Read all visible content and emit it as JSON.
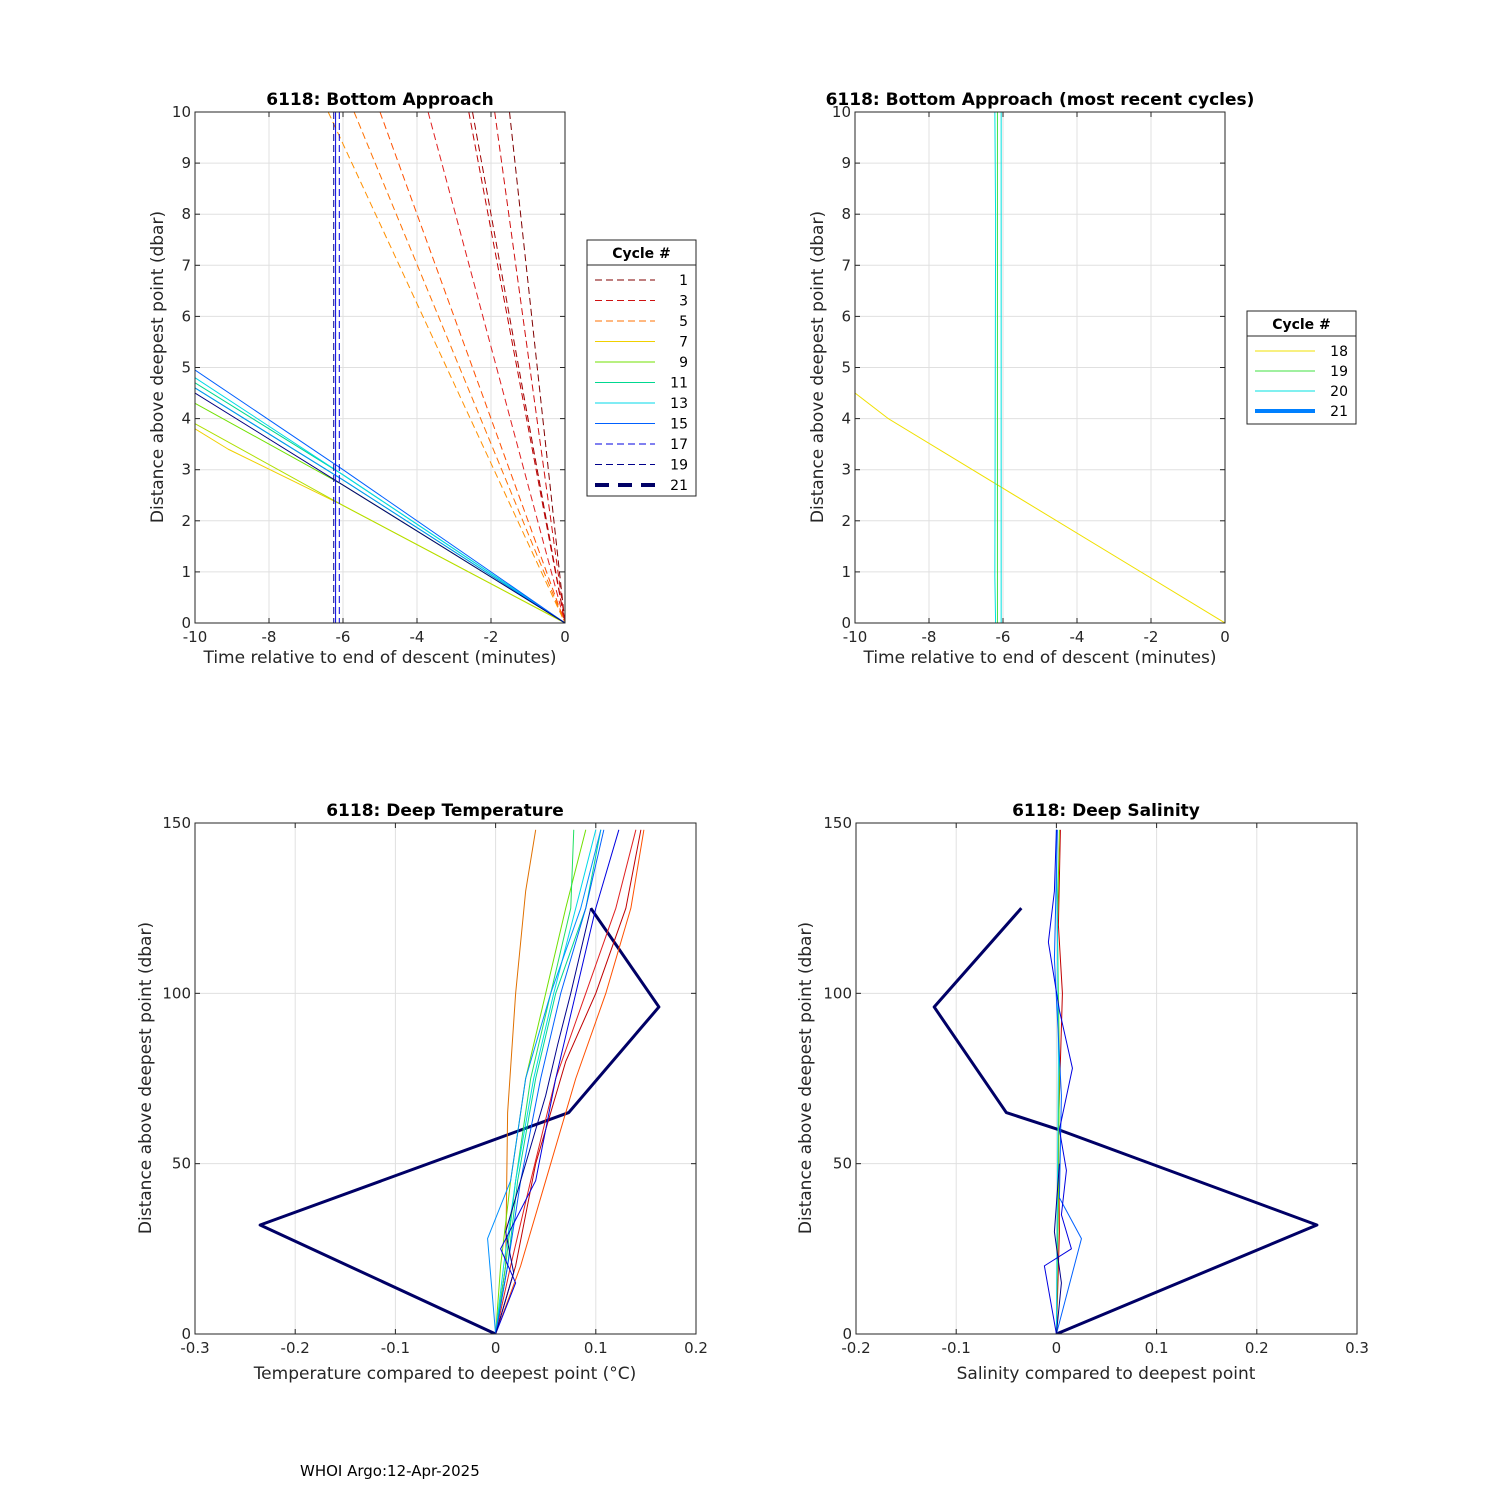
{
  "footer": "WHOI Argo:12-Apr-2025",
  "chart_data": [
    {
      "id": "p1",
      "type": "line",
      "title": "6118: Bottom Approach",
      "xlabel": "Time relative to end of descent (minutes)",
      "ylabel": "Distance above deepest point (dbar)",
      "xlim": [
        -10,
        0
      ],
      "ylim": [
        0,
        10
      ],
      "xticks": [
        -10,
        -8,
        -6,
        -4,
        -2,
        0
      ],
      "yticks": [
        0,
        1,
        2,
        3,
        4,
        5,
        6,
        7,
        8,
        9,
        10
      ],
      "grid": true,
      "legend": {
        "title": "Cycle #",
        "position": "right",
        "entries": [
          {
            "label": "1",
            "color": "#800000",
            "style": "dashed"
          },
          {
            "label": "3",
            "color": "#d01010",
            "style": "dashed"
          },
          {
            "label": "5",
            "color": "#ff7000",
            "style": "dashed"
          },
          {
            "label": "7",
            "color": "#f0d000",
            "style": "solid"
          },
          {
            "label": "9",
            "color": "#70e000",
            "style": "solid"
          },
          {
            "label": "11",
            "color": "#00d890",
            "style": "solid"
          },
          {
            "label": "13",
            "color": "#00d8e8",
            "style": "solid"
          },
          {
            "label": "15",
            "color": "#0060ff",
            "style": "solid"
          },
          {
            "label": "17",
            "color": "#0000e0",
            "style": "dashed"
          },
          {
            "label": "19",
            "color": "#00008b",
            "style": "dashed"
          },
          {
            "label": "21",
            "color": "#000066",
            "style": "dashed-thick"
          }
        ]
      },
      "series": [
        {
          "color": "#800000",
          "style": "dashed",
          "width": 1,
          "x": [
            -1.5,
            0
          ],
          "y": [
            10,
            0
          ]
        },
        {
          "color": "#a00000",
          "style": "dashed",
          "width": 1,
          "x": [
            -2.5,
            0
          ],
          "y": [
            10,
            0
          ]
        },
        {
          "color": "#c00000",
          "style": "dashed",
          "width": 1,
          "x": [
            -2.6,
            0
          ],
          "y": [
            10,
            0
          ]
        },
        {
          "color": "#d01010",
          "style": "dashed",
          "width": 1,
          "x": [
            -1.9,
            0
          ],
          "y": [
            10,
            0
          ]
        },
        {
          "color": "#e02020",
          "style": "dashed",
          "width": 1,
          "x": [
            -3.7,
            0
          ],
          "y": [
            10,
            0
          ]
        },
        {
          "color": "#ff5000",
          "style": "dashed",
          "width": 1,
          "x": [
            -5.0,
            0
          ],
          "y": [
            10,
            0
          ]
        },
        {
          "color": "#ff7000",
          "style": "dashed",
          "width": 1,
          "x": [
            -5.7,
            0
          ],
          "y": [
            10,
            0
          ]
        },
        {
          "color": "#ff9000",
          "style": "dashed",
          "width": 1,
          "x": [
            -6.4,
            0
          ],
          "y": [
            10,
            0
          ]
        },
        {
          "color": "#f0d000",
          "style": "solid",
          "width": 1,
          "x": [
            -10,
            -9.1,
            -6,
            0
          ],
          "y": [
            3.8,
            3.4,
            2.3,
            0
          ]
        },
        {
          "color": "#b0e000",
          "style": "solid",
          "width": 1,
          "x": [
            -10,
            -6,
            0
          ],
          "y": [
            3.9,
            2.3,
            0
          ]
        },
        {
          "color": "#70e000",
          "style": "solid",
          "width": 1,
          "x": [
            -10,
            -6,
            0
          ],
          "y": [
            4.3,
            2.7,
            0
          ]
        },
        {
          "color": "#20e060",
          "style": "solid",
          "width": 1,
          "x": [
            -10,
            -6,
            0
          ],
          "y": [
            4.6,
            2.8,
            0
          ]
        },
        {
          "color": "#00d890",
          "style": "solid",
          "width": 1,
          "x": [
            -10,
            -6,
            0
          ],
          "y": [
            4.7,
            2.9,
            0
          ]
        },
        {
          "color": "#00d8e8",
          "style": "solid",
          "width": 1,
          "x": [
            -10,
            -6,
            0
          ],
          "y": [
            4.8,
            2.9,
            0
          ]
        },
        {
          "color": "#0090ff",
          "style": "solid",
          "width": 1,
          "x": [
            -10,
            -6,
            0
          ],
          "y": [
            4.6,
            2.8,
            0
          ]
        },
        {
          "color": "#0060ff",
          "style": "solid",
          "width": 1,
          "x": [
            -10,
            -6,
            0
          ],
          "y": [
            4.95,
            3.0,
            0
          ]
        },
        {
          "color": "#000080",
          "style": "solid",
          "width": 1,
          "x": [
            -10,
            -6,
            0
          ],
          "y": [
            4.5,
            2.7,
            0
          ]
        },
        {
          "color": "#0000e0",
          "style": "solid",
          "width": 1,
          "x": [
            -6.2,
            -6.2
          ],
          "y": [
            10,
            0
          ]
        },
        {
          "color": "#0000e0",
          "style": "dashed",
          "width": 1,
          "x": [
            -6.1,
            -6.1
          ],
          "y": [
            10,
            0
          ]
        },
        {
          "color": "#00008b",
          "style": "dashed",
          "width": 1,
          "x": [
            -6.25,
            -6.25
          ],
          "y": [
            10,
            0
          ]
        }
      ]
    },
    {
      "id": "p2",
      "type": "line",
      "title": "6118: Bottom Approach (most recent cycles)",
      "xlabel": "Time relative to end of descent (minutes)",
      "ylabel": "Distance above deepest point (dbar)",
      "xlim": [
        -10,
        0
      ],
      "ylim": [
        0,
        10
      ],
      "xticks": [
        -10,
        -8,
        -6,
        -4,
        -2,
        0
      ],
      "yticks": [
        0,
        1,
        2,
        3,
        4,
        5,
        6,
        7,
        8,
        9,
        10
      ],
      "grid": true,
      "legend": {
        "title": "Cycle #",
        "position": "right",
        "entries": [
          {
            "label": "18",
            "color": "#f0e000",
            "style": "solid"
          },
          {
            "label": "19",
            "color": "#40e040",
            "style": "solid"
          },
          {
            "label": "20",
            "color": "#00e0e0",
            "style": "solid"
          },
          {
            "label": "21",
            "color": "#0080ff",
            "style": "solid-thick"
          }
        ]
      },
      "series": [
        {
          "color": "#f0e000",
          "style": "solid",
          "width": 1,
          "x": [
            -10,
            -9.1,
            0
          ],
          "y": [
            4.5,
            4.0,
            0
          ]
        },
        {
          "color": "#40e040",
          "style": "solid",
          "width": 1,
          "x": [
            -6.15,
            -6.15
          ],
          "y": [
            10,
            0
          ]
        },
        {
          "color": "#00e0e0",
          "style": "solid",
          "width": 1,
          "x": [
            -6.22,
            -6.2,
            -6.22,
            -6.2
          ],
          "y": [
            10,
            7.9,
            0.9,
            0
          ]
        },
        {
          "color": "#00e0e0",
          "style": "solid",
          "width": 1,
          "x": [
            -6.05,
            -6.05
          ],
          "y": [
            10,
            0
          ]
        }
      ]
    },
    {
      "id": "p3",
      "type": "line",
      "title": "6118: Deep Temperature",
      "xlabel": "Temperature compared to deepest point (°C)",
      "ylabel": "Distance above deepest point (dbar)",
      "xlim": [
        -0.3,
        0.2
      ],
      "ylim": [
        0,
        150
      ],
      "xticks": [
        -0.3,
        -0.2,
        -0.1,
        0,
        0.1,
        0.2
      ],
      "yticks": [
        0,
        50,
        100,
        150
      ],
      "grid": true,
      "series": [
        {
          "color": "#000066",
          "style": "solid",
          "width": 3,
          "x": [
            0,
            -0.235,
            0.073,
            0.163,
            0.095
          ],
          "y": [
            0,
            32,
            65,
            96,
            125
          ]
        },
        {
          "color": "#e07000",
          "style": "solid",
          "width": 1,
          "x": [
            0,
            0.01,
            0.012,
            0.02,
            0.03,
            0.04
          ],
          "y": [
            0,
            20,
            65,
            100,
            130,
            148
          ]
        },
        {
          "color": "#c00000",
          "style": "solid",
          "width": 1,
          "x": [
            0,
            0.02,
            0.04,
            0.07,
            0.1,
            0.13,
            0.145
          ],
          "y": [
            0,
            20,
            50,
            80,
            100,
            125,
            148
          ]
        },
        {
          "color": "#e02020",
          "style": "solid",
          "width": 1,
          "x": [
            0,
            0.015,
            0.035,
            0.06,
            0.09,
            0.12,
            0.14
          ],
          "y": [
            0,
            20,
            45,
            75,
            100,
            125,
            148
          ]
        },
        {
          "color": "#ff5000",
          "style": "solid",
          "width": 1,
          "x": [
            0,
            0.025,
            0.05,
            0.08,
            0.11,
            0.135,
            0.148
          ],
          "y": [
            0,
            20,
            45,
            75,
            100,
            125,
            148
          ]
        },
        {
          "color": "#70e000",
          "style": "solid",
          "width": 1,
          "x": [
            0,
            0.005,
            0.015,
            0.03,
            0.05,
            0.07,
            0.09
          ],
          "y": [
            0,
            20,
            45,
            75,
            100,
            125,
            148
          ]
        },
        {
          "color": "#20e060",
          "style": "solid",
          "width": 1,
          "x": [
            0,
            0.01,
            0.02,
            0.035,
            0.055,
            0.075,
            0.078
          ],
          "y": [
            0,
            20,
            45,
            75,
            100,
            125,
            148
          ]
        },
        {
          "color": "#00d890",
          "style": "solid",
          "width": 1,
          "x": [
            0,
            0.012,
            0.022,
            0.04,
            0.06,
            0.09,
            0.105
          ],
          "y": [
            0,
            20,
            45,
            75,
            100,
            125,
            148
          ]
        },
        {
          "color": "#00d8e8",
          "style": "solid",
          "width": 1,
          "x": [
            0,
            0.008,
            0.02,
            0.038,
            0.058,
            0.08,
            0.1
          ],
          "y": [
            0,
            20,
            45,
            75,
            100,
            125,
            148
          ]
        },
        {
          "color": "#0090ff",
          "style": "solid",
          "width": 1,
          "x": [
            0,
            -0.008,
            0.015,
            0.03,
            0.055,
            0.085,
            0.105
          ],
          "y": [
            0,
            28,
            45,
            75,
            100,
            125,
            148
          ]
        },
        {
          "color": "#0060ff",
          "style": "solid",
          "width": 1,
          "x": [
            0,
            0.012,
            0.025,
            0.045,
            0.065,
            0.09,
            0.108
          ],
          "y": [
            0,
            20,
            45,
            75,
            100,
            125,
            148
          ]
        },
        {
          "color": "#0000e0",
          "style": "solid",
          "width": 1,
          "x": [
            0,
            0.02,
            0.005,
            0.04,
            0.06,
            0.08,
            0.1,
            0.123
          ],
          "y": [
            0,
            15,
            25,
            45,
            75,
            100,
            125,
            148
          ]
        },
        {
          "color": "#00008b",
          "style": "solid",
          "width": 1,
          "x": [
            0,
            0.018,
            0.01,
            0.035,
            0.05,
            0.062,
            0.075,
            0.095
          ],
          "y": [
            0,
            18,
            30,
            55,
            70,
            85,
            100,
            125
          ]
        }
      ]
    },
    {
      "id": "p4",
      "type": "line",
      "title": "6118: Deep Salinity",
      "xlabel": "Salinity compared to deepest point",
      "ylabel": "Distance above deepest point (dbar)",
      "xlim": [
        -0.2,
        0.3
      ],
      "ylim": [
        0,
        150
      ],
      "xticks": [
        -0.2,
        -0.1,
        0,
        0.1,
        0.2,
        0.3
      ],
      "yticks": [
        0,
        50,
        100,
        150
      ],
      "grid": true,
      "series": [
        {
          "color": "#000066",
          "style": "solid",
          "width": 3,
          "x": [
            0,
            0.26,
            0.002,
            -0.05,
            -0.122,
            -0.035
          ],
          "y": [
            0,
            32,
            60,
            65,
            96,
            125
          ]
        },
        {
          "color": "#c00000",
          "style": "solid",
          "width": 1,
          "x": [
            0,
            0.003,
            0.002,
            0.006,
            0.002,
            0.004
          ],
          "y": [
            0,
            30,
            60,
            100,
            120,
            148
          ]
        },
        {
          "color": "#70e000",
          "style": "solid",
          "width": 1,
          "x": [
            0,
            0.002,
            0.003,
            0.001,
            0.003
          ],
          "y": [
            0,
            40,
            80,
            120,
            148
          ]
        },
        {
          "color": "#00d8e8",
          "style": "solid",
          "width": 1,
          "x": [
            0,
            0.001,
            0.002,
            0.001,
            0.0
          ],
          "y": [
            0,
            40,
            80,
            120,
            148
          ]
        },
        {
          "color": "#0060ff",
          "style": "solid",
          "width": 1,
          "x": [
            0,
            0.025,
            0.003,
            0.005,
            -0.002,
            0.001
          ],
          "y": [
            0,
            28,
            40,
            70,
            110,
            148
          ]
        },
        {
          "color": "#0000e0",
          "style": "solid",
          "width": 1,
          "x": [
            0,
            -0.012,
            0.015,
            0.005,
            0.01,
            0.003,
            0.016,
            0.003,
            -0.008,
            -0.002,
            0.0
          ],
          "y": [
            0,
            20,
            25,
            35,
            48,
            60,
            78,
            95,
            115,
            130,
            148
          ]
        },
        {
          "color": "#00008b",
          "style": "solid",
          "width": 1,
          "x": [
            0,
            0.005,
            -0.002,
            0.003
          ],
          "y": [
            0,
            15,
            30,
            50
          ]
        }
      ]
    }
  ]
}
